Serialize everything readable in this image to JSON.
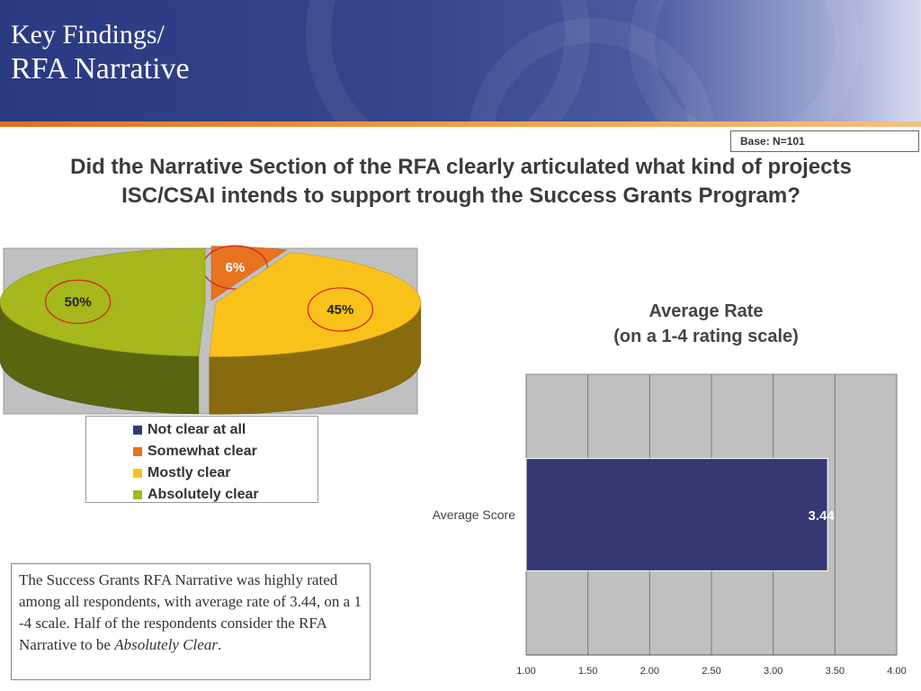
{
  "header": {
    "title_line1": "Key Findings/",
    "title_line2": "RFA Narrative"
  },
  "base_note": "Base: N=101",
  "question": "Did the Narrative Section of the RFA clearly articulated what kind of projects ISC/CSAI intends to support trough the Success Grants Program?",
  "bar_chart_title_line1": "Average Rate",
  "bar_chart_title_line2": "(on a 1-4 rating scale)",
  "summary": {
    "text_before": "The Success Grants RFA Narrative was highly rated among all respondents, with average rate of 3.44, on a 1 -4 scale. Half of the respondents consider the RFA Narrative to be ",
    "text_emphasis": "Absolutely Clear",
    "text_after": "."
  },
  "chart_data": [
    {
      "type": "pie",
      "categories": [
        "Not clear at all",
        "Somewhat clear",
        "Mostly clear",
        "Absolutely clear"
      ],
      "values": [
        0,
        6,
        45,
        50
      ],
      "data_labels": [
        "",
        "6%",
        "45%",
        "50%"
      ],
      "colors": [
        "#2e3a78",
        "#e8731f",
        "#f9c21b",
        "#a6b81c"
      ],
      "legend": "below",
      "style": "3d-exploded"
    },
    {
      "type": "bar",
      "orientation": "horizontal",
      "categories": [
        "Average Score"
      ],
      "values": [
        3.44
      ],
      "data_labels": [
        "3.44"
      ],
      "xlim": [
        1.0,
        4.0
      ],
      "xticks": [
        "1.00",
        "1.50",
        "2.00",
        "2.50",
        "3.00",
        "3.50",
        "4.00"
      ],
      "grid": true,
      "bar_color": "#353872"
    }
  ]
}
